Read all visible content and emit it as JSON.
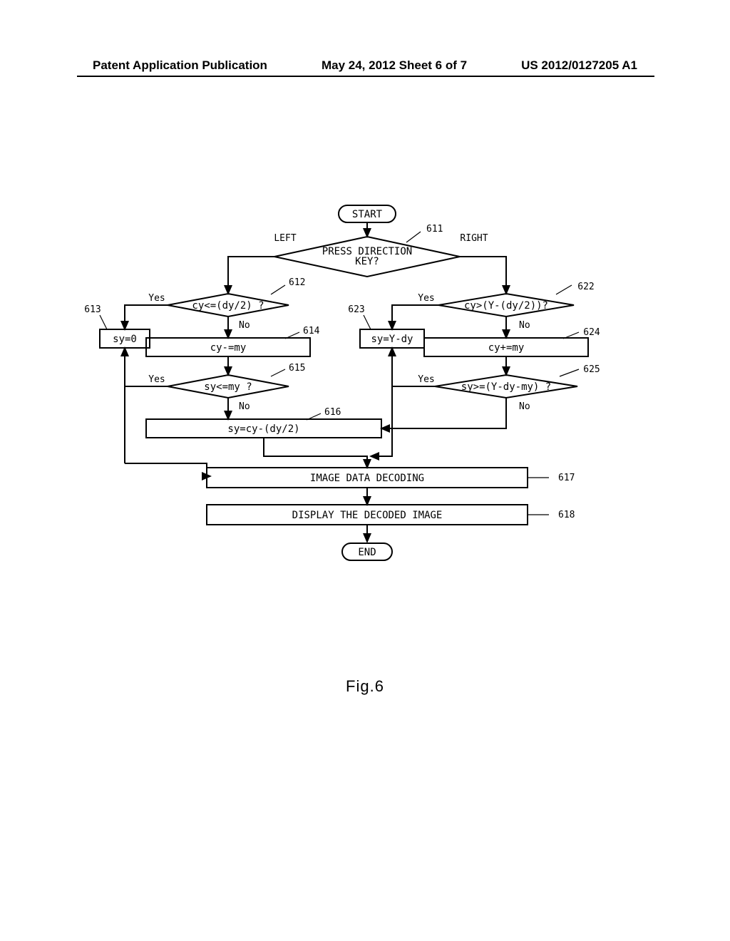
{
  "header": {
    "left": "Patent Application Publication",
    "center": "May 24, 2012  Sheet 6 of 7",
    "right": "US 2012/0127205 A1"
  },
  "figure_caption": "Fig.6",
  "flow": {
    "start": "START",
    "end": "END",
    "decision_611": {
      "text_l1": "PRESS DIRECTION",
      "text_l2": "KEY?",
      "left_label": "LEFT",
      "right_label": "RIGHT",
      "ref": "611"
    },
    "decision_612": {
      "text": "cy<=(dy/2) ?",
      "yes": "Yes",
      "no": "No",
      "ref": "612"
    },
    "box_613": {
      "text": "sy=0",
      "ref": "613"
    },
    "box_614": {
      "text": "cy-=my",
      "ref": "614"
    },
    "decision_615": {
      "text": "sy<=my ?",
      "yes": "Yes",
      "no": "No",
      "ref": "615"
    },
    "box_616": {
      "text": "sy=cy-(dy/2)",
      "ref": "616"
    },
    "box_617": {
      "text": "IMAGE DATA DECODING",
      "ref": "617"
    },
    "box_618": {
      "text": "DISPLAY THE DECODED IMAGE",
      "ref": "618"
    },
    "decision_622": {
      "text": "cy>(Y-(dy/2))?",
      "yes": "Yes",
      "no": "No",
      "ref": "622"
    },
    "box_623": {
      "text": "sy=Y-dy",
      "ref": "623"
    },
    "box_624": {
      "text": "cy+=my",
      "ref": "624"
    },
    "decision_625": {
      "text": "sy>=(Y-dy-my) ?",
      "yes": "Yes",
      "no": "No",
      "ref": "625"
    }
  },
  "style": {
    "stroke": "#000000",
    "stroke_width": 2,
    "font_family": "monospace",
    "font_size_node": 14,
    "font_size_label": 13,
    "bg": "#ffffff"
  }
}
